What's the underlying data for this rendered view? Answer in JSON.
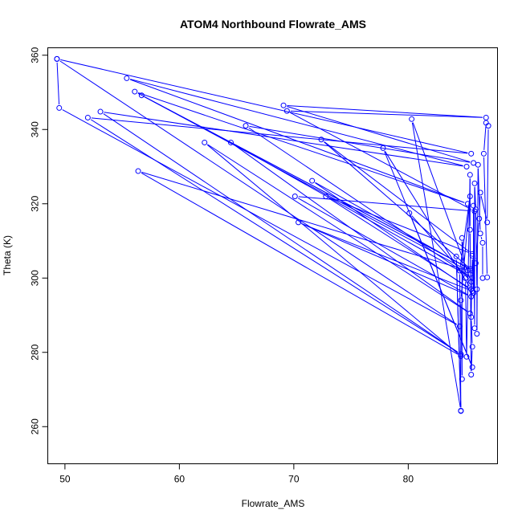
{
  "chart_data": {
    "type": "scatter",
    "title": "ATOM4 Northbound Flowrate_AMS",
    "xlabel": "Flowrate_AMS",
    "ylabel": "Theta (K)",
    "xlim": [
      48.5,
      87.8
    ],
    "ylim": [
      250,
      362
    ],
    "x_ticks": [
      50,
      60,
      70,
      80
    ],
    "x_tick_labels": [
      "50",
      "60",
      "70",
      "80"
    ],
    "y_ticks": [
      260,
      280,
      300,
      320,
      340,
      360
    ],
    "y_tick_labels": [
      "260",
      "280",
      "300",
      "320",
      "340",
      "360"
    ],
    "grid": false,
    "legend": "none",
    "color": "#0000FF",
    "series": [
      {
        "style": "points-and-lines",
        "points": [
          [
            49.3,
            359.0
          ],
          [
            49.5,
            345.8
          ],
          [
            84.5,
            287.0
          ],
          [
            49.3,
            359.0
          ],
          [
            85.5,
            333.5
          ],
          [
            52.0,
            343.2
          ],
          [
            84.6,
            279.5
          ],
          [
            53.1,
            344.8
          ],
          [
            85.1,
            330.0
          ],
          [
            55.4,
            353.8
          ],
          [
            85.2,
            320.0
          ],
          [
            56.1,
            350.2
          ],
          [
            85.4,
            302.5
          ],
          [
            56.7,
            349.2
          ],
          [
            85.2,
            302.0
          ],
          [
            56.4,
            328.8
          ],
          [
            84.6,
            279.0
          ],
          [
            62.2,
            336.5
          ],
          [
            85.4,
            290.5
          ],
          [
            64.5,
            336.5
          ],
          [
            85.6,
            300.0
          ],
          [
            65.8,
            341.0
          ],
          [
            85.7,
            331.0
          ],
          [
            69.1,
            346.5
          ],
          [
            86.8,
            343.2
          ],
          [
            69.4,
            345.0
          ],
          [
            85.8,
            318.0
          ],
          [
            70.1,
            322.0
          ],
          [
            85.5,
            295.0
          ],
          [
            70.4,
            315.0
          ],
          [
            85.6,
            296.5
          ],
          [
            71.6,
            326.2
          ],
          [
            85.6,
            302.0
          ],
          [
            72.4,
            337.3
          ],
          [
            85.6,
            306.5
          ],
          [
            72.8,
            322.0
          ],
          [
            85.5,
            297.0
          ],
          [
            77.8,
            335.0
          ],
          [
            85.6,
            276.0
          ],
          [
            80.1,
            317.5
          ],
          [
            85.5,
            299.0
          ],
          [
            80.3,
            342.8
          ],
          [
            84.6,
            264.3
          ],
          [
            84.2,
            305.8
          ],
          [
            84.6,
            264.2
          ],
          [
            84.5,
            302.0
          ],
          [
            85.4,
            322.0
          ],
          [
            84.6,
            294.0
          ],
          [
            84.7,
            272.8
          ],
          [
            84.7,
            310.8
          ],
          [
            85.0,
            300.0
          ],
          [
            85.1,
            278.8
          ],
          [
            85.4,
            327.8
          ],
          [
            85.4,
            313.0
          ],
          [
            85.5,
            274.0
          ],
          [
            85.6,
            281.5
          ],
          [
            85.5,
            289.5
          ],
          [
            85.6,
            306.0
          ],
          [
            85.7,
            296.0
          ],
          [
            85.7,
            319.5
          ],
          [
            85.8,
            286.5
          ],
          [
            85.8,
            325.5
          ],
          [
            85.9,
            318.5
          ],
          [
            86.0,
            297.0
          ],
          [
            86.0,
            285.0
          ],
          [
            86.1,
            330.5
          ],
          [
            86.3,
            312.0
          ],
          [
            86.5,
            309.5
          ],
          [
            86.5,
            300.0
          ],
          [
            86.9,
            300.2
          ],
          [
            86.6,
            333.5
          ],
          [
            86.8,
            341.8
          ],
          [
            87.0,
            341.0
          ],
          [
            86.9,
            315.0
          ],
          [
            86.3,
            323.0
          ],
          [
            86.2,
            316.0
          ],
          [
            85.9,
            304.0
          ]
        ]
      }
    ]
  }
}
